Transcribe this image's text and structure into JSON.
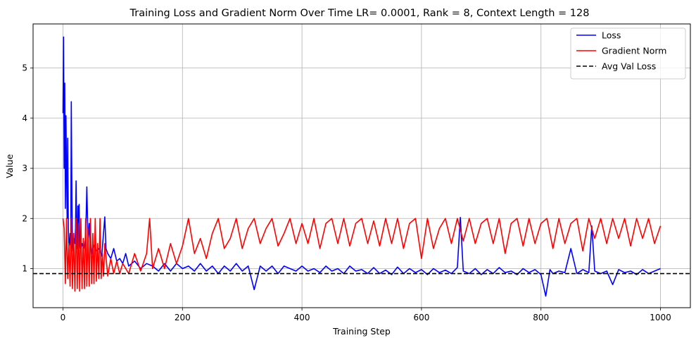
{
  "chart_data": {
    "type": "line",
    "title": "Training Loss and Gradient Norm Over Time LR= 0.0001, Rank = 8, Context Length = 128",
    "xlabel": "Training Step",
    "ylabel": "Value",
    "xlim": [
      -50,
      1050
    ],
    "ylim": [
      0.22,
      5.88
    ],
    "xticks": [
      0,
      200,
      400,
      600,
      800,
      1000
    ],
    "yticks": [
      1,
      2,
      3,
      4,
      5
    ],
    "grid": true,
    "legend_position": "upper right",
    "series": [
      {
        "name": "Loss",
        "color": "#0000ff",
        "style": "solid",
        "points": [
          [
            0,
            4.1
          ],
          [
            1,
            5.62
          ],
          [
            2,
            3.0
          ],
          [
            3,
            4.7
          ],
          [
            4,
            2.2
          ],
          [
            5,
            4.05
          ],
          [
            6,
            3.0
          ],
          [
            7,
            2.0
          ],
          [
            8,
            3.6
          ],
          [
            9,
            1.8
          ],
          [
            10,
            1.45
          ],
          [
            11,
            1.5
          ],
          [
            12,
            1.7
          ],
          [
            13,
            1.35
          ],
          [
            14,
            4.33
          ],
          [
            15,
            2.4
          ],
          [
            16,
            1.45
          ],
          [
            17,
            1.35
          ],
          [
            18,
            1.5
          ],
          [
            19,
            1.6
          ],
          [
            20,
            1.5
          ],
          [
            21,
            1.8
          ],
          [
            22,
            2.75
          ],
          [
            23,
            1.6
          ],
          [
            24,
            1.4
          ],
          [
            25,
            2.25
          ],
          [
            26,
            1.6
          ],
          [
            27,
            2.28
          ],
          [
            28,
            1.45
          ],
          [
            30,
            1.35
          ],
          [
            32,
            1.5
          ],
          [
            35,
            1.4
          ],
          [
            38,
            1.6
          ],
          [
            40,
            2.63
          ],
          [
            42,
            1.5
          ],
          [
            44,
            1.9
          ],
          [
            46,
            1.4
          ],
          [
            48,
            1.3
          ],
          [
            50,
            1.5
          ],
          [
            55,
            1.35
          ],
          [
            60,
            1.4
          ],
          [
            65,
            1.25
          ],
          [
            70,
            2.03
          ],
          [
            72,
            1.4
          ],
          [
            75,
            1.3
          ],
          [
            80,
            1.2
          ],
          [
            85,
            1.4
          ],
          [
            90,
            1.15
          ],
          [
            95,
            1.2
          ],
          [
            100,
            1.1
          ],
          [
            105,
            1.3
          ],
          [
            110,
            1.05
          ],
          [
            120,
            1.15
          ],
          [
            130,
            1.0
          ],
          [
            140,
            1.1
          ],
          [
            150,
            1.05
          ],
          [
            160,
            0.95
          ],
          [
            170,
            1.1
          ],
          [
            180,
            0.95
          ],
          [
            190,
            1.1
          ],
          [
            200,
            1.0
          ],
          [
            210,
            1.05
          ],
          [
            220,
            0.95
          ],
          [
            230,
            1.1
          ],
          [
            240,
            0.95
          ],
          [
            250,
            1.05
          ],
          [
            260,
            0.9
          ],
          [
            270,
            1.05
          ],
          [
            280,
            0.95
          ],
          [
            290,
            1.1
          ],
          [
            300,
            0.95
          ],
          [
            310,
            1.05
          ],
          [
            320,
            0.58
          ],
          [
            330,
            1.05
          ],
          [
            340,
            0.95
          ],
          [
            350,
            1.05
          ],
          [
            360,
            0.9
          ],
          [
            370,
            1.05
          ],
          [
            380,
            1.0
          ],
          [
            390,
            0.95
          ],
          [
            400,
            1.05
          ],
          [
            410,
            0.95
          ],
          [
            420,
            1.0
          ],
          [
            430,
            0.92
          ],
          [
            440,
            1.05
          ],
          [
            450,
            0.95
          ],
          [
            460,
            1.0
          ],
          [
            470,
            0.9
          ],
          [
            480,
            1.05
          ],
          [
            490,
            0.95
          ],
          [
            500,
            0.98
          ],
          [
            510,
            0.9
          ],
          [
            520,
            1.02
          ],
          [
            530,
            0.9
          ],
          [
            540,
            0.97
          ],
          [
            550,
            0.88
          ],
          [
            560,
            1.03
          ],
          [
            570,
            0.9
          ],
          [
            580,
            1.0
          ],
          [
            590,
            0.92
          ],
          [
            600,
            0.98
          ],
          [
            610,
            0.88
          ],
          [
            620,
            1.0
          ],
          [
            630,
            0.92
          ],
          [
            640,
            0.97
          ],
          [
            650,
            0.9
          ],
          [
            660,
            1.02
          ],
          [
            665,
            2.02
          ],
          [
            670,
            0.95
          ],
          [
            680,
            0.9
          ],
          [
            690,
            1.0
          ],
          [
            700,
            0.88
          ],
          [
            710,
            0.98
          ],
          [
            720,
            0.9
          ],
          [
            730,
            1.02
          ],
          [
            740,
            0.92
          ],
          [
            750,
            0.95
          ],
          [
            760,
            0.88
          ],
          [
            770,
            1.0
          ],
          [
            780,
            0.92
          ],
          [
            790,
            0.98
          ],
          [
            800,
            0.88
          ],
          [
            808,
            0.45
          ],
          [
            815,
            0.98
          ],
          [
            820,
            0.9
          ],
          [
            830,
            0.95
          ],
          [
            840,
            0.92
          ],
          [
            850,
            1.4
          ],
          [
            860,
            0.9
          ],
          [
            870,
            0.98
          ],
          [
            880,
            0.92
          ],
          [
            885,
            1.85
          ],
          [
            890,
            0.95
          ],
          [
            900,
            0.9
          ],
          [
            910,
            0.95
          ],
          [
            920,
            0.68
          ],
          [
            930,
            0.98
          ],
          [
            940,
            0.92
          ],
          [
            950,
            0.95
          ],
          [
            960,
            0.88
          ],
          [
            970,
            0.98
          ],
          [
            980,
            0.9
          ],
          [
            990,
            0.95
          ],
          [
            1000,
            1.0
          ]
        ]
      },
      {
        "name": "Gradient Norm",
        "color": "#ff0000",
        "style": "solid",
        "points": [
          [
            0,
            2.0
          ],
          [
            2,
            1.8
          ],
          [
            4,
            0.7
          ],
          [
            6,
            2.0
          ],
          [
            8,
            0.8
          ],
          [
            10,
            1.5
          ],
          [
            12,
            0.65
          ],
          [
            14,
            2.0
          ],
          [
            16,
            0.6
          ],
          [
            18,
            1.7
          ],
          [
            20,
            0.55
          ],
          [
            22,
            2.0
          ],
          [
            24,
            0.6
          ],
          [
            26,
            1.9
          ],
          [
            28,
            0.55
          ],
          [
            30,
            2.0
          ],
          [
            32,
            0.6
          ],
          [
            34,
            1.6
          ],
          [
            36,
            0.6
          ],
          [
            38,
            2.0
          ],
          [
            40,
            0.65
          ],
          [
            42,
            1.8
          ],
          [
            44,
            0.65
          ],
          [
            46,
            2.0
          ],
          [
            48,
            0.7
          ],
          [
            50,
            1.7
          ],
          [
            52,
            0.7
          ],
          [
            54,
            2.0
          ],
          [
            56,
            0.75
          ],
          [
            58,
            1.5
          ],
          [
            60,
            0.8
          ],
          [
            62,
            2.0
          ],
          [
            64,
            0.8
          ],
          [
            66,
            1.3
          ],
          [
            68,
            0.85
          ],
          [
            70,
            1.5
          ],
          [
            75,
            0.85
          ],
          [
            80,
            1.2
          ],
          [
            85,
            0.9
          ],
          [
            90,
            1.15
          ],
          [
            95,
            0.9
          ],
          [
            100,
            1.1
          ],
          [
            110,
            0.9
          ],
          [
            120,
            1.3
          ],
          [
            130,
            0.95
          ],
          [
            140,
            1.3
          ],
          [
            145,
            2.0
          ],
          [
            150,
            1.0
          ],
          [
            160,
            1.4
          ],
          [
            170,
            1.0
          ],
          [
            180,
            1.5
          ],
          [
            190,
            1.1
          ],
          [
            200,
            1.45
          ],
          [
            210,
            2.0
          ],
          [
            220,
            1.3
          ],
          [
            230,
            1.6
          ],
          [
            240,
            1.2
          ],
          [
            250,
            1.7
          ],
          [
            260,
            2.0
          ],
          [
            270,
            1.4
          ],
          [
            280,
            1.6
          ],
          [
            290,
            2.0
          ],
          [
            300,
            1.4
          ],
          [
            310,
            1.8
          ],
          [
            320,
            2.0
          ],
          [
            330,
            1.5
          ],
          [
            340,
            1.8
          ],
          [
            350,
            2.0
          ],
          [
            360,
            1.45
          ],
          [
            370,
            1.7
          ],
          [
            380,
            2.0
          ],
          [
            390,
            1.5
          ],
          [
            400,
            1.9
          ],
          [
            410,
            1.5
          ],
          [
            420,
            2.0
          ],
          [
            430,
            1.4
          ],
          [
            440,
            1.9
          ],
          [
            450,
            2.0
          ],
          [
            460,
            1.5
          ],
          [
            470,
            2.0
          ],
          [
            480,
            1.45
          ],
          [
            490,
            1.9
          ],
          [
            500,
            2.0
          ],
          [
            510,
            1.5
          ],
          [
            520,
            1.95
          ],
          [
            530,
            1.45
          ],
          [
            540,
            2.0
          ],
          [
            550,
            1.5
          ],
          [
            560,
            2.0
          ],
          [
            570,
            1.4
          ],
          [
            580,
            1.9
          ],
          [
            590,
            2.0
          ],
          [
            600,
            1.2
          ],
          [
            610,
            2.0
          ],
          [
            620,
            1.4
          ],
          [
            630,
            1.8
          ],
          [
            640,
            2.0
          ],
          [
            650,
            1.5
          ],
          [
            660,
            2.0
          ],
          [
            670,
            1.55
          ],
          [
            680,
            2.0
          ],
          [
            690,
            1.5
          ],
          [
            700,
            1.9
          ],
          [
            710,
            2.0
          ],
          [
            720,
            1.5
          ],
          [
            730,
            2.0
          ],
          [
            740,
            1.3
          ],
          [
            750,
            1.9
          ],
          [
            760,
            2.0
          ],
          [
            770,
            1.45
          ],
          [
            780,
            2.0
          ],
          [
            790,
            1.5
          ],
          [
            800,
            1.9
          ],
          [
            810,
            2.0
          ],
          [
            820,
            1.4
          ],
          [
            830,
            2.0
          ],
          [
            840,
            1.5
          ],
          [
            850,
            1.9
          ],
          [
            860,
            2.0
          ],
          [
            870,
            1.35
          ],
          [
            880,
            2.0
          ],
          [
            890,
            1.6
          ],
          [
            900,
            2.0
          ],
          [
            910,
            1.5
          ],
          [
            920,
            2.0
          ],
          [
            930,
            1.6
          ],
          [
            940,
            2.0
          ],
          [
            950,
            1.45
          ],
          [
            960,
            2.0
          ],
          [
            970,
            1.6
          ],
          [
            980,
            2.0
          ],
          [
            990,
            1.5
          ],
          [
            1000,
            1.85
          ]
        ]
      },
      {
        "name": "Avg Val Loss",
        "color": "#000000",
        "style": "dashed",
        "y": 0.9
      }
    ]
  }
}
